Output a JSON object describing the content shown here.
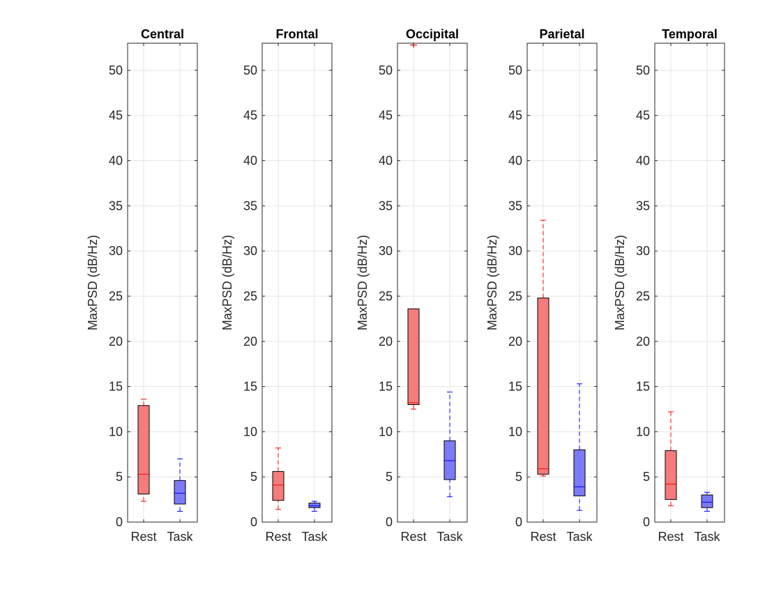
{
  "figure": {
    "background": "#ffffff"
  },
  "style": {
    "rest_fill": "#f47c7c",
    "rest_stroke": "#ff0000",
    "task_fill": "#7b7bf7",
    "task_stroke": "#0000ff",
    "box_edge": "#000000",
    "grid": "#e5e5e5",
    "axis": "#262626"
  },
  "chart_data": [
    {
      "type": "box",
      "title": "Central",
      "xlabel": "",
      "ylabel": "MaxPSD (dB/Hz)",
      "ylim": [
        0,
        53
      ],
      "yticks": [
        0,
        5,
        10,
        15,
        20,
        25,
        30,
        35,
        40,
        45,
        50
      ],
      "grid": true,
      "categories": [
        "Rest",
        "Task"
      ],
      "boxes": [
        {
          "name": "Rest",
          "whisker_low": 2.3,
          "q1": 3.1,
          "median": 5.3,
          "q3": 12.9,
          "whisker_high": 13.6,
          "outliers": []
        },
        {
          "name": "Task",
          "whisker_low": 1.2,
          "q1": 2.0,
          "median": 3.2,
          "q3": 4.6,
          "whisker_high": 7.0,
          "outliers": []
        }
      ]
    },
    {
      "type": "box",
      "title": "Frontal",
      "xlabel": "",
      "ylabel": "MaxPSD (dB/Hz)",
      "ylim": [
        0,
        53
      ],
      "yticks": [
        0,
        5,
        10,
        15,
        20,
        25,
        30,
        35,
        40,
        45,
        50
      ],
      "grid": true,
      "categories": [
        "Rest",
        "Task"
      ],
      "boxes": [
        {
          "name": "Rest",
          "whisker_low": 1.4,
          "q1": 2.4,
          "median": 4.1,
          "q3": 5.6,
          "whisker_high": 8.2,
          "outliers": []
        },
        {
          "name": "Task",
          "whisker_low": 1.2,
          "q1": 1.6,
          "median": 1.8,
          "q3": 2.1,
          "whisker_high": 2.3,
          "outliers": []
        }
      ]
    },
    {
      "type": "box",
      "title": "Occipital",
      "xlabel": "",
      "ylabel": "MaxPSD (dB/Hz)",
      "ylim": [
        0,
        53
      ],
      "yticks": [
        0,
        5,
        10,
        15,
        20,
        25,
        30,
        35,
        40,
        45,
        50
      ],
      "grid": true,
      "categories": [
        "Rest",
        "Task"
      ],
      "boxes": [
        {
          "name": "Rest",
          "whisker_low": 12.5,
          "q1": 13.0,
          "median": 13.2,
          "q3": 23.6,
          "whisker_high": 23.6,
          "outliers": [
            52.8
          ]
        },
        {
          "name": "Task",
          "whisker_low": 2.8,
          "q1": 4.7,
          "median": 6.8,
          "q3": 9.0,
          "whisker_high": 14.4,
          "outliers": []
        }
      ]
    },
    {
      "type": "box",
      "title": "Parietal",
      "xlabel": "",
      "ylabel": "MaxPSD (dB/Hz)",
      "ylim": [
        0,
        53
      ],
      "yticks": [
        0,
        5,
        10,
        15,
        20,
        25,
        30,
        35,
        40,
        45,
        50
      ],
      "grid": true,
      "categories": [
        "Rest",
        "Task"
      ],
      "boxes": [
        {
          "name": "Rest",
          "whisker_low": 5.1,
          "q1": 5.3,
          "median": 5.9,
          "q3": 24.8,
          "whisker_high": 33.4,
          "outliers": []
        },
        {
          "name": "Task",
          "whisker_low": 1.3,
          "q1": 2.9,
          "median": 3.9,
          "q3": 8.0,
          "whisker_high": 15.3,
          "outliers": []
        }
      ]
    },
    {
      "type": "box",
      "title": "Temporal",
      "xlabel": "",
      "ylabel": "MaxPSD (dB/Hz)",
      "ylim": [
        0,
        53
      ],
      "yticks": [
        0,
        5,
        10,
        15,
        20,
        25,
        30,
        35,
        40,
        45,
        50
      ],
      "grid": true,
      "categories": [
        "Rest",
        "Task"
      ],
      "boxes": [
        {
          "name": "Rest",
          "whisker_low": 1.8,
          "q1": 2.5,
          "median": 4.2,
          "q3": 7.9,
          "whisker_high": 12.2,
          "outliers": []
        },
        {
          "name": "Task",
          "whisker_low": 1.2,
          "q1": 1.6,
          "median": 2.2,
          "q3": 3.0,
          "whisker_high": 3.3,
          "outliers": []
        }
      ]
    }
  ]
}
